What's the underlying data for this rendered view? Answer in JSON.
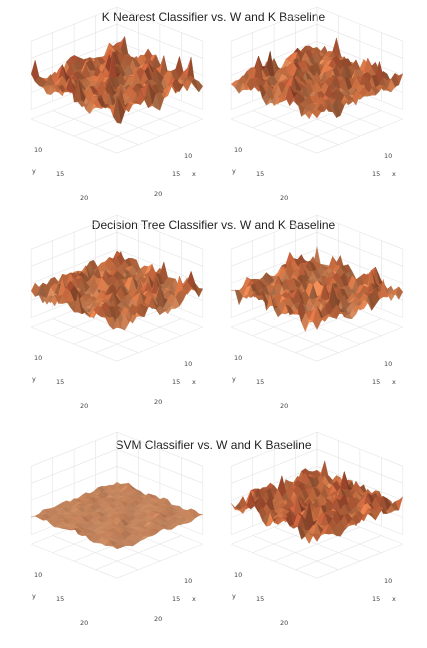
{
  "chart_data": [
    {
      "type": "surface",
      "title": "K Nearest Classifier vs. W and K Baseline",
      "panels": [
        {
          "x_ticks": [
            "10",
            "15",
            "20"
          ],
          "y_ticks": [
            "10",
            "15",
            "20"
          ],
          "xlabel": "x",
          "ylabel": "y",
          "x": [
            5,
            25
          ],
          "y": [
            5,
            25
          ],
          "amplitude": 1.0,
          "base": 0.55,
          "seed": 11
        },
        {
          "x_ticks": [
            "10",
            "15"
          ],
          "y_ticks": [
            "10",
            "15",
            "20"
          ],
          "xlabel": "x",
          "ylabel": "y",
          "x": [
            5,
            25
          ],
          "y": [
            5,
            25
          ],
          "amplitude": 1.0,
          "base": 0.55,
          "seed": 23
        }
      ]
    },
    {
      "type": "surface",
      "title": "Decision Tree Classifier vs. W and K Baseline",
      "panels": [
        {
          "x_ticks": [
            "10",
            "15",
            "20"
          ],
          "y_ticks": [
            "10",
            "15",
            "20"
          ],
          "xlabel": "x",
          "ylabel": "y",
          "x": [
            5,
            25
          ],
          "y": [
            5,
            25
          ],
          "amplitude": 1.0,
          "base": 0.5,
          "seed": 37
        },
        {
          "x_ticks": [
            "10",
            "15"
          ],
          "y_ticks": [
            "10",
            "15",
            "20"
          ],
          "xlabel": "x",
          "ylabel": "y",
          "x": [
            5,
            25
          ],
          "y": [
            5,
            25
          ],
          "amplitude": 1.0,
          "base": 0.5,
          "seed": 41
        }
      ]
    },
    {
      "type": "surface",
      "title": "SVM Classifier vs. W and K Baseline",
      "panels": [
        {
          "x_ticks": [
            "10",
            "15",
            "20"
          ],
          "y_ticks": [
            "10",
            "15",
            "20"
          ],
          "xlabel": "x",
          "ylabel": "y",
          "x": [
            5,
            25
          ],
          "y": [
            5,
            25
          ],
          "amplitude": 0.25,
          "base": 0.3,
          "seed": 53
        },
        {
          "x_ticks": [
            "10",
            "15"
          ],
          "y_ticks": [
            "10",
            "15",
            "20"
          ],
          "xlabel": "x",
          "ylabel": "y",
          "x": [
            5,
            25
          ],
          "y": [
            5,
            25
          ],
          "amplitude": 0.9,
          "base": 0.6,
          "seed": 67
        }
      ]
    }
  ],
  "colors": {
    "low": "#f7c59a",
    "mid": "#e8824c",
    "high": "#a52a24"
  }
}
